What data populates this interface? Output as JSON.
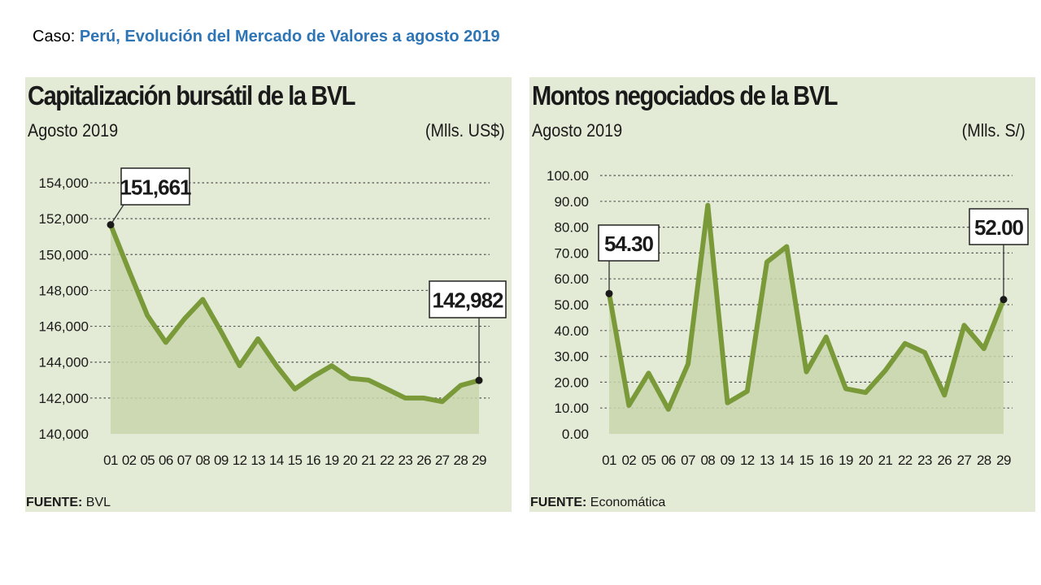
{
  "case": {
    "prefix": "Caso: ",
    "title": "Perú, Evolución del Mercado de Valores a agosto 2019"
  },
  "colors": {
    "panel_bg": "#e3ead5",
    "line": "#7a9a3a",
    "area": "#c8d6ac",
    "grid": "#555555",
    "title_blue": "#2e75b6"
  },
  "chart_data": [
    {
      "type": "area",
      "title": "Capitalización bursátil de la BVL",
      "subtitle": "Agosto 2019",
      "unit": "(Mlls. US$)",
      "source_label": "FUENTE:",
      "source": "BVL",
      "categories": [
        "01",
        "02",
        "05",
        "06",
        "07",
        "08",
        "09",
        "12",
        "13",
        "14",
        "15",
        "16",
        "19",
        "20",
        "21",
        "22",
        "23",
        "26",
        "27",
        "28",
        "29"
      ],
      "series": [
        {
          "values": [
            151661,
            149100,
            146600,
            145100,
            146400,
            147500,
            145700,
            143800,
            145300,
            143800,
            142500,
            143200,
            143800,
            143100,
            143000,
            142500,
            142000,
            142000,
            141800,
            142700,
            142982
          ]
        }
      ],
      "yticks": [
        "154,000",
        "152,000",
        "150,000",
        "148,000",
        "146,000",
        "144,000",
        "142,000",
        "140,000"
      ],
      "ylim": [
        140000,
        154000
      ],
      "ystep": 2000,
      "grid": true,
      "annotations": [
        {
          "index": 0,
          "label": "151,661"
        },
        {
          "index": 20,
          "label": "142,982"
        }
      ]
    },
    {
      "type": "area",
      "title": "Montos negociados de la BVL",
      "subtitle": "Agosto 2019",
      "unit": "(Mlls. S/)",
      "source_label": "FUENTE:",
      "source": "Economática",
      "categories": [
        "01",
        "02",
        "05",
        "06",
        "07",
        "08",
        "09",
        "12",
        "13",
        "14",
        "15",
        "16",
        "19",
        "20",
        "21",
        "22",
        "23",
        "26",
        "27",
        "28",
        "29"
      ],
      "series": [
        {
          "values": [
            54.3,
            11.0,
            23.5,
            9.5,
            27.0,
            88.5,
            12.0,
            16.5,
            66.5,
            72.5,
            24.0,
            37.5,
            17.5,
            16.0,
            24.5,
            35.0,
            31.5,
            15.0,
            42.0,
            33.0,
            52.0
          ]
        }
      ],
      "yticks": [
        "100.00",
        "90.00",
        "80.00",
        "70.00",
        "60.00",
        "50.00",
        "40.00",
        "30.00",
        "20.00",
        "10.00",
        "0.00"
      ],
      "ylim": [
        0,
        100
      ],
      "ystep": 10,
      "grid": true,
      "annotations": [
        {
          "index": 0,
          "label": "54.30"
        },
        {
          "index": 20,
          "label": "52.00"
        }
      ]
    }
  ]
}
